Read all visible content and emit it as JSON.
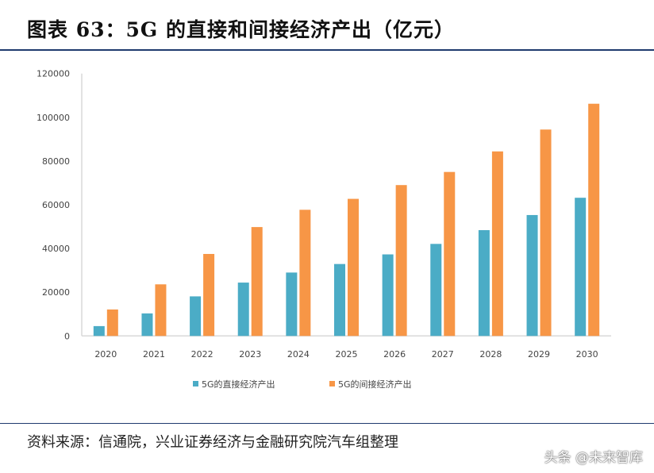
{
  "title": "图表 63：5G 的直接和间接经济产出（亿元）",
  "source": "资料来源：信通院，兴业证券经济与金融研究院汽车组整理",
  "watermark": "头条 @未来智库",
  "chart_data": {
    "type": "bar",
    "title": "",
    "xlabel": "",
    "ylabel": "",
    "ylim": [
      0,
      120000
    ],
    "yticks": [
      "0",
      "20000",
      "40000",
      "60000",
      "80000",
      "100000",
      "120000"
    ],
    "categories": [
      "2020",
      "2021",
      "2022",
      "2023",
      "2024",
      "2025",
      "2026",
      "2027",
      "2028",
      "2029",
      "2030"
    ],
    "legend_position": "bottom",
    "grid": false,
    "series": [
      {
        "name": "5G的直接经济产出",
        "color": "#4bacc6",
        "values": [
          4500,
          10300,
          18100,
          24400,
          29000,
          32900,
          37300,
          42100,
          48400,
          55300,
          63200
        ]
      },
      {
        "name": "5G的间接经济产出",
        "color": "#f79646",
        "values": [
          12100,
          23600,
          37500,
          49800,
          57700,
          62700,
          69000,
          75000,
          84400,
          94400,
          106200
        ]
      }
    ]
  }
}
